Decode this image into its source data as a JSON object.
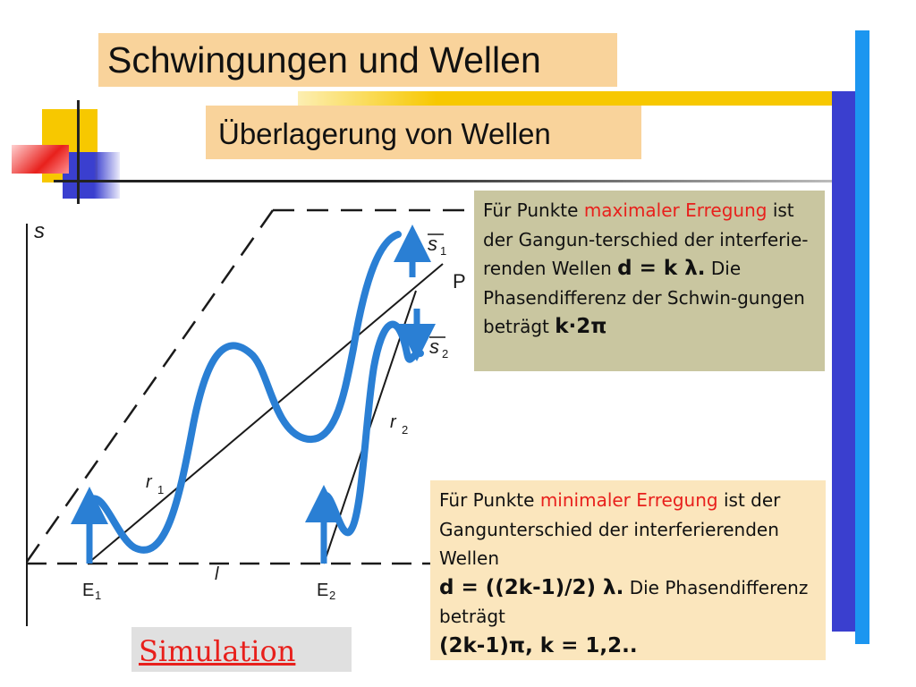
{
  "slide": {
    "title": "Schwingungen und Wellen",
    "subtitle": "Überlagerung von Wellen"
  },
  "diagram": {
    "axis_label": "s",
    "point_label": "P",
    "ray_label_1": "r",
    "ray_label_1_sub": "1",
    "ray_label_2": "r",
    "ray_label_2_sub": "2",
    "distance_label": "l",
    "emitter_1": "E",
    "emitter_1_sub": "1",
    "emitter_2": "E",
    "emitter_2_sub": "2",
    "vector_1": "s",
    "vector_1_sub": "1",
    "vector_2": "s",
    "vector_2_sub": "2"
  },
  "box_max": {
    "t1": "Für Punkte ",
    "t2": "maximaler Erregung",
    "t3": " ist der Gangun-terschied der interferie-renden Wellen ",
    "t4": "d = k λ.",
    "t5": " Die Phasendifferenz der Schwin-gungen beträgt ",
    "t6": "k·2π"
  },
  "box_min": {
    "t1": "Für Punkte ",
    "t2": "minimaler Erregung",
    "t3": " ist der Gangunterschied der interferierenden Wellen",
    "t4": "d = ((2k-1)/2) λ.",
    "t5": " Die Phasendifferenz beträgt",
    "t6": "(2k-1)π, k = 1,2.."
  },
  "simulation_link": "Simulation",
  "colors": {
    "title_bg": "#f9d39b",
    "box_max_bg": "#c9c6a0",
    "box_min_bg": "#fbe6bd",
    "wave": "#2a7fd4",
    "accent_red": "#e8201c",
    "deco_blue": "#3a3fcf",
    "deco_yellow": "#f7c800"
  }
}
